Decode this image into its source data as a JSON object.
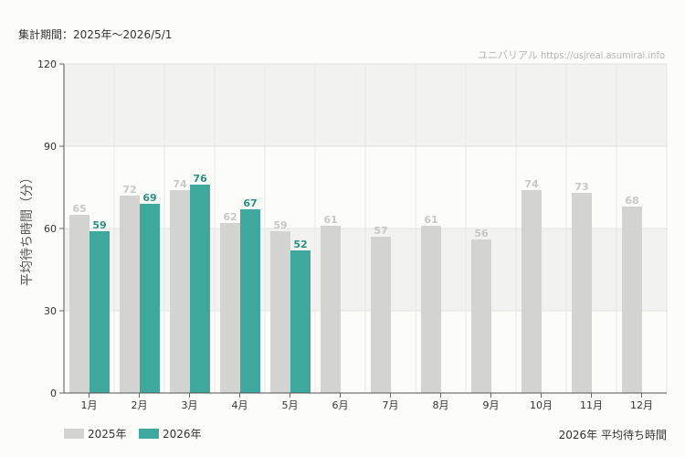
{
  "header": {
    "period": "集計期間：2025年〜2026/5/1",
    "watermark": "ユニバリアル https://usjreal.asumirai.info"
  },
  "footer": {
    "chart_title": "2026年 平均待ち時間"
  },
  "colors": {
    "series_2025": "#d3d3d1",
    "series_2026": "#3fa89c",
    "label_2025": "#c8c8c6",
    "label_2026": "#2a8f83",
    "band": "#f2f2f1"
  },
  "chart_data": {
    "type": "bar",
    "title": "2026年 平均待ち時間",
    "ylabel": "平均待ち時間（分）",
    "xlabel": "",
    "categories": [
      "1月",
      "2月",
      "3月",
      "4月",
      "5月",
      "6月",
      "7月",
      "8月",
      "9月",
      "10月",
      "11月",
      "12月"
    ],
    "series": [
      {
        "name": "2025年",
        "values": [
          65,
          72,
          74,
          62,
          59,
          61,
          57,
          61,
          56,
          74,
          73,
          68
        ]
      },
      {
        "name": "2026年",
        "values": [
          59,
          69,
          76,
          67,
          52,
          null,
          null,
          null,
          null,
          null,
          null,
          null
        ]
      }
    ],
    "ylim": [
      0,
      120
    ],
    "yticks": [
      0,
      30,
      60,
      90,
      120
    ],
    "grid": true,
    "legend_position": "bottom-left"
  }
}
